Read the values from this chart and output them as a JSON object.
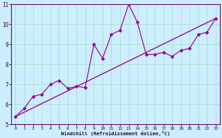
{
  "xlabel": "Windchill (Refroidissement éolien,°C)",
  "bg_color": "#cceeff",
  "line_color": "#990099",
  "grid_color": "#aaddcc",
  "spine_color": "#660066",
  "xlim": [
    -0.5,
    23.5
  ],
  "ylim": [
    5,
    11
  ],
  "xticks": [
    0,
    1,
    2,
    3,
    4,
    5,
    6,
    7,
    8,
    9,
    10,
    11,
    12,
    13,
    14,
    15,
    16,
    17,
    18,
    19,
    20,
    21,
    22,
    23
  ],
  "yticks": [
    5,
    6,
    7,
    8,
    9,
    10,
    11
  ],
  "data_x": [
    0,
    1,
    2,
    3,
    4,
    5,
    6,
    7,
    8,
    9,
    10,
    11,
    12,
    13,
    14,
    15,
    16,
    17,
    18,
    19,
    20,
    21,
    22,
    23
  ],
  "data_y": [
    5.4,
    5.8,
    6.4,
    6.5,
    7.0,
    7.2,
    6.8,
    6.9,
    6.85,
    9.0,
    8.3,
    9.5,
    9.7,
    11.0,
    10.1,
    8.5,
    8.5,
    8.6,
    8.4,
    8.7,
    8.8,
    9.5,
    9.6,
    10.3
  ],
  "trend_x": [
    0,
    23
  ],
  "trend_y": [
    5.4,
    10.3
  ]
}
